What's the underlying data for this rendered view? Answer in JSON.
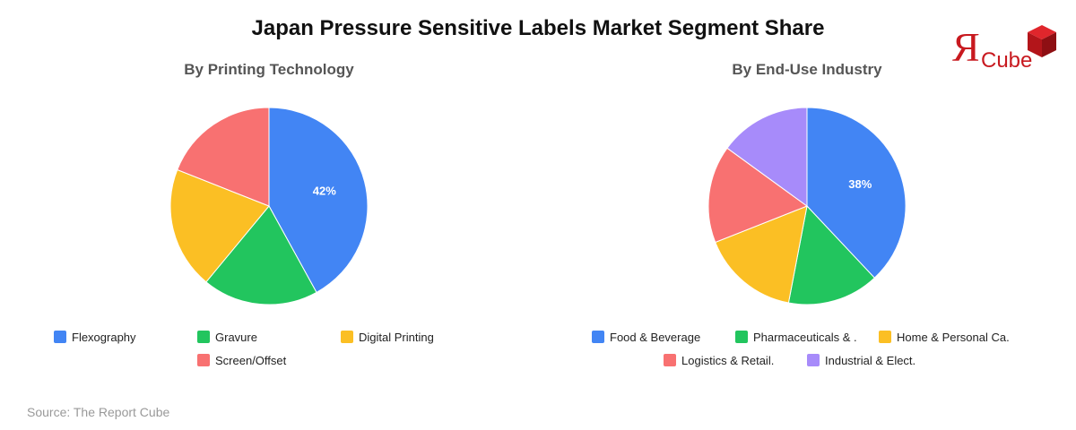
{
  "title": "Japan Pressure Sensitive Labels Market Segment Share",
  "source": "Source: The Report Cube",
  "logo": {
    "letter": "Я",
    "word": "Cube"
  },
  "colors": {
    "blue": "#4285f4",
    "green": "#22c55e",
    "yellow": "#fbbf24",
    "red": "#f87171",
    "purple": "#a78bfa",
    "logo_red": "#c8191f"
  },
  "chart_data": [
    {
      "type": "pie",
      "title": "By Printing Technology",
      "legend_position": "bottom",
      "labels": [
        "Flexography",
        "Gravure",
        "Digital Printing",
        "Screen/Offset"
      ],
      "values": [
        42,
        19,
        20,
        19
      ],
      "colors": [
        "#4285f4",
        "#22c55e",
        "#fbbf24",
        "#f87171"
      ],
      "data_labels": [
        "42%",
        "",
        "",
        ""
      ]
    },
    {
      "type": "pie",
      "title": "By End-Use Industry",
      "legend_position": "bottom",
      "labels": [
        "Food & Beverage",
        "Pharmaceuticals & .",
        "Home & Personal Ca.",
        "Logistics & Retail.",
        "Industrial & Elect."
      ],
      "values": [
        38,
        15,
        16,
        16,
        15
      ],
      "colors": [
        "#4285f4",
        "#22c55e",
        "#fbbf24",
        "#f87171",
        "#a78bfa"
      ],
      "data_labels": [
        "38%",
        "",
        "",
        "",
        ""
      ]
    }
  ]
}
